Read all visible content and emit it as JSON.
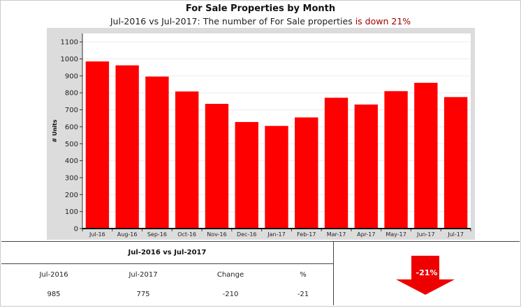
{
  "header": {
    "title": "For Sale Properties by Month",
    "subtitle_prefix": "Jul-2016 vs Jul-2017: The number of For Sale properties",
    "subtitle_highlight": "is down 21%"
  },
  "colors": {
    "bar": "#ff0000",
    "plot_background": "#ffffff",
    "chart_background": "#dcdcdc",
    "down_text": "#a00000",
    "arrow": "#ee0000"
  },
  "chart_data": {
    "type": "bar",
    "categories": [
      "Jul-16",
      "Aug-16",
      "Sep-16",
      "Oct-16",
      "Nov-16",
      "Dec-16",
      "Jan-17",
      "Feb-17",
      "Mar-17",
      "Apr-17",
      "May-17",
      "Jun-17",
      "Jul-17"
    ],
    "values": [
      985,
      962,
      896,
      808,
      735,
      628,
      605,
      655,
      771,
      731,
      810,
      859,
      775
    ],
    "title": "",
    "xlabel": "",
    "ylabel": "# Units",
    "ylim": [
      0,
      1150
    ],
    "yticks": [
      0,
      100,
      200,
      300,
      400,
      500,
      600,
      700,
      800,
      900,
      1000,
      1100
    ],
    "grid": true,
    "legend": "none"
  },
  "summary": {
    "heading": "Jul-2016 vs Jul-2017",
    "columns": [
      "Jul-2016",
      "Jul-2017",
      "Change",
      "%"
    ],
    "values": [
      "985",
      "775",
      "-210",
      "-21"
    ],
    "indicator_label": "-21%",
    "indicator_icon": "down-arrow-icon"
  }
}
